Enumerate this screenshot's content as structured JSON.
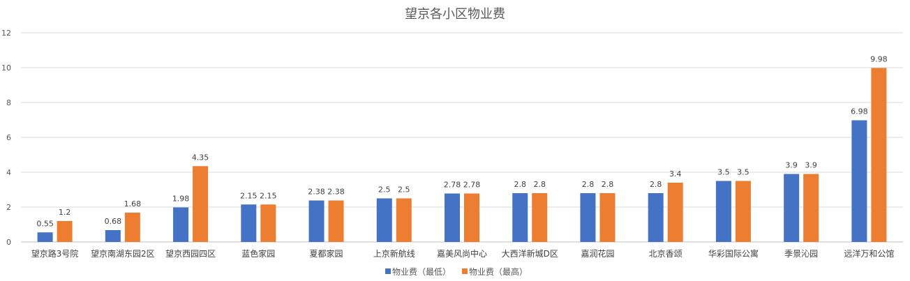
{
  "chart_data": {
    "type": "bar",
    "title": "望京各小区物业费",
    "xlabel": "",
    "ylabel": "",
    "ylim": [
      0,
      12
    ],
    "yticks": [
      0,
      2,
      4,
      6,
      8,
      10,
      12
    ],
    "grid": true,
    "legend_position": "bottom",
    "categories": [
      "望京路3号院",
      "望京南湖东园2区",
      "望京西园四区",
      "蓝色家园",
      "夏都家园",
      "上京新航线",
      "嘉美风尚中心",
      "大西洋新城D区",
      "嘉润花园",
      "北京香颂",
      "华彩国际公寓",
      "季景沁园",
      "远洋万和公馆"
    ],
    "series": [
      {
        "name": "物业费（最低）",
        "color": "#4472C4",
        "values": [
          0.55,
          0.68,
          1.98,
          2.15,
          2.38,
          2.5,
          2.78,
          2.8,
          2.8,
          2.8,
          3.5,
          3.9,
          6.98
        ]
      },
      {
        "name": "物业费（最高）",
        "color": "#ED7D31",
        "values": [
          1.2,
          1.68,
          4.35,
          2.15,
          2.38,
          2.5,
          2.78,
          2.8,
          2.8,
          3.4,
          3.5,
          3.9,
          9.98
        ]
      }
    ]
  }
}
